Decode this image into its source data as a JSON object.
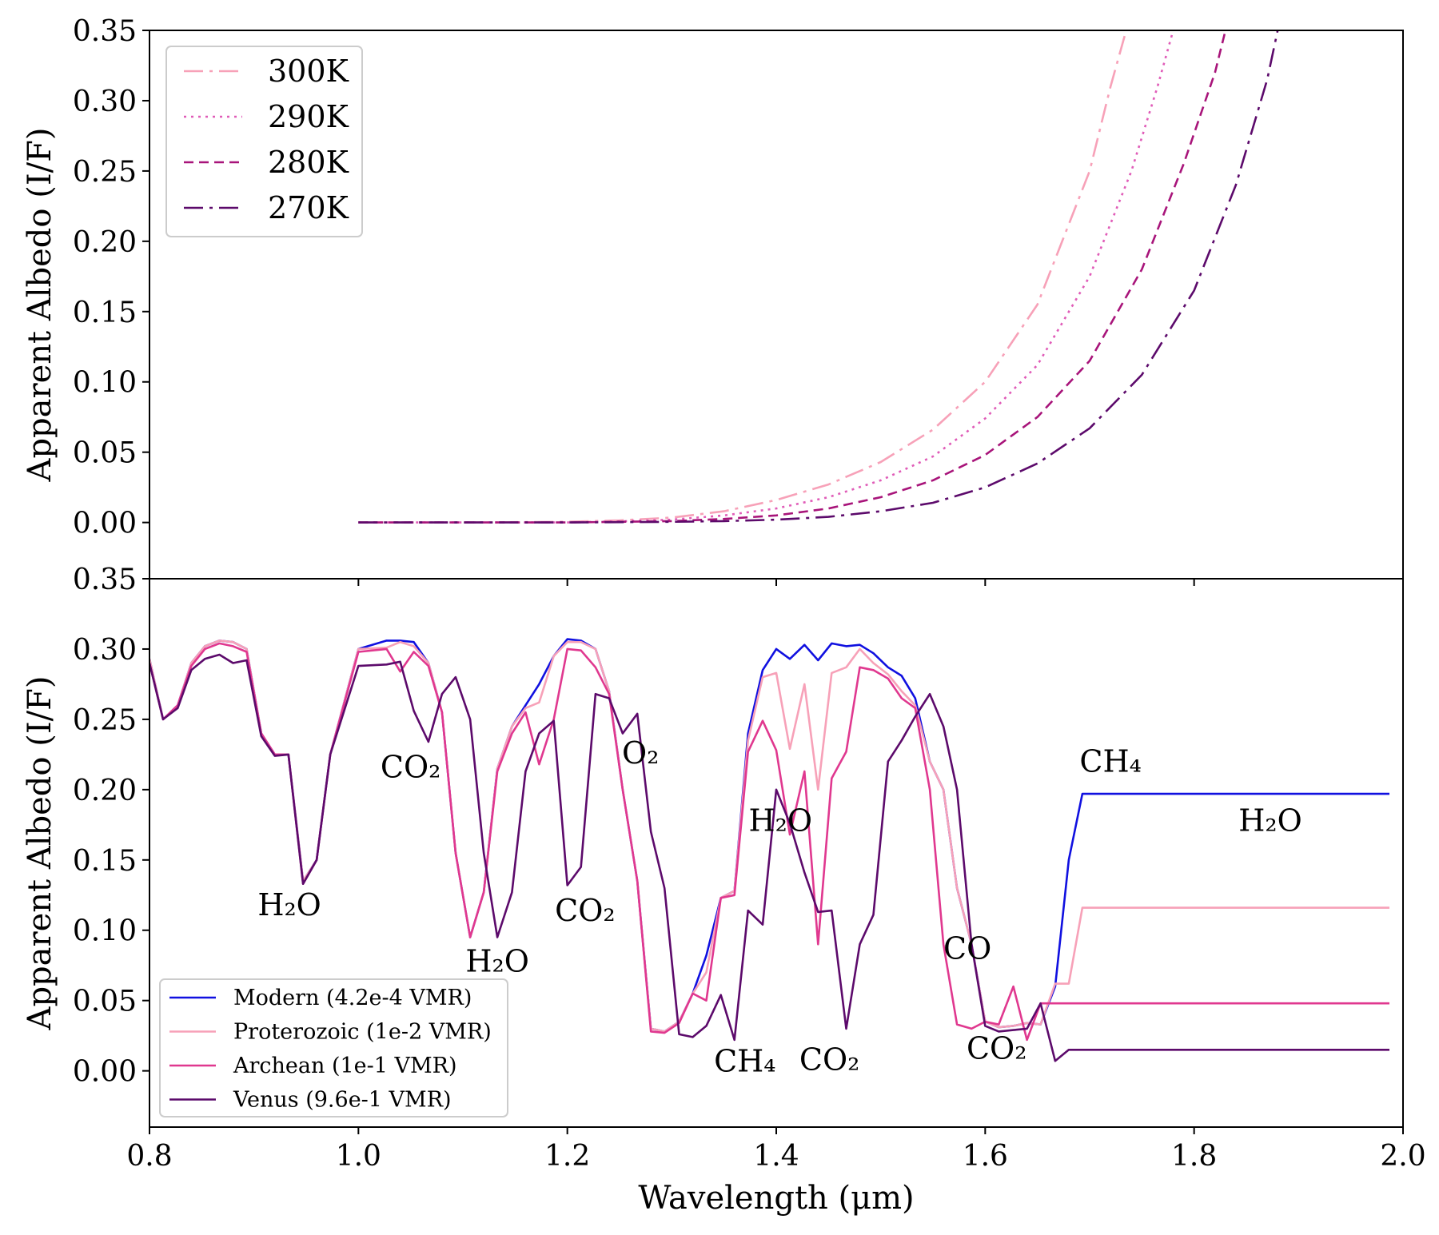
{
  "figure": {
    "xlabel": "Wavelength (μm)",
    "colors": {
      "axis": "#000000",
      "legend_border": "#cccccc"
    }
  },
  "chart_data": [
    {
      "type": "line",
      "panel": "top",
      "title": "",
      "xlabel": "Wavelength (μm)",
      "ylabel": "Apparent Albedo (I/F)",
      "xlim": [
        0.8,
        2.0
      ],
      "ylim": [
        -0.04,
        0.35
      ],
      "xticks": [
        0.8,
        1.0,
        1.2,
        1.4,
        1.6,
        1.8,
        2.0
      ],
      "yticks": [
        "0.00",
        "0.05",
        "0.10",
        "0.15",
        "0.20",
        "0.25",
        "0.30",
        "0.35"
      ],
      "grid": false,
      "legend_position": "top-left",
      "series": [
        {
          "name": "300K",
          "color": "#f7a1b8",
          "dash": "24,8,4,8",
          "x": [
            1.0,
            1.1,
            1.2,
            1.25,
            1.3,
            1.35,
            1.4,
            1.45,
            1.5,
            1.55,
            1.6,
            1.65,
            1.7,
            1.72,
            1.735
          ],
          "y": [
            0.0,
            0.0,
            0.0005,
            0.0015,
            0.0035,
            0.008,
            0.016,
            0.027,
            0.043,
            0.066,
            0.1,
            0.155,
            0.25,
            0.31,
            0.35
          ]
        },
        {
          "name": "290K",
          "color": "#e05cb8",
          "dash": "3,6",
          "x": [
            1.0,
            1.1,
            1.2,
            1.25,
            1.3,
            1.35,
            1.4,
            1.45,
            1.5,
            1.55,
            1.6,
            1.65,
            1.7,
            1.74,
            1.765,
            1.78
          ],
          "y": [
            0.0,
            0.0,
            0.0,
            0.0008,
            0.002,
            0.005,
            0.01,
            0.018,
            0.03,
            0.047,
            0.074,
            0.112,
            0.175,
            0.25,
            0.31,
            0.35
          ]
        },
        {
          "name": "280K",
          "color": "#a8147a",
          "dash": "12,7",
          "x": [
            1.0,
            1.1,
            1.2,
            1.3,
            1.35,
            1.4,
            1.45,
            1.5,
            1.55,
            1.6,
            1.65,
            1.7,
            1.75,
            1.79,
            1.82,
            1.83
          ],
          "y": [
            0.0,
            0.0,
            0.0,
            0.001,
            0.0025,
            0.005,
            0.01,
            0.018,
            0.03,
            0.048,
            0.075,
            0.115,
            0.18,
            0.255,
            0.32,
            0.35
          ]
        },
        {
          "name": "270K",
          "color": "#5c0a6b",
          "dash": "24,8,4,8",
          "x": [
            1.0,
            1.1,
            1.2,
            1.3,
            1.35,
            1.4,
            1.45,
            1.5,
            1.55,
            1.6,
            1.65,
            1.7,
            1.75,
            1.8,
            1.84,
            1.87,
            1.88
          ],
          "y": [
            0.0,
            0.0,
            0.0,
            0.0005,
            0.001,
            0.002,
            0.004,
            0.008,
            0.014,
            0.025,
            0.042,
            0.067,
            0.105,
            0.165,
            0.24,
            0.315,
            0.35
          ]
        }
      ]
    },
    {
      "type": "line",
      "panel": "bottom",
      "title": "",
      "xlabel": "Wavelength (μm)",
      "ylabel": "Apparent Albedo (I/F)",
      "xlim": [
        0.8,
        2.0
      ],
      "ylim": [
        -0.04,
        0.35
      ],
      "xticks": [
        "0.8",
        "1.0",
        "1.2",
        "1.4",
        "1.6",
        "1.8",
        "2.0"
      ],
      "yticks": [
        "0.00",
        "0.05",
        "0.10",
        "0.15",
        "0.20",
        "0.25",
        "0.30",
        "0.35"
      ],
      "grid": false,
      "legend_position": "bottom-left",
      "series": [
        {
          "name": "Modern (4.2e-4 VMR)",
          "color": "#1010e0",
          "x": [
            0.8,
            0.813,
            0.827,
            0.84,
            0.853,
            0.867,
            0.88,
            0.893,
            0.907,
            0.92,
            0.933,
            0.947,
            0.96,
            0.973,
            1.0,
            1.027,
            1.04,
            1.053,
            1.067,
            1.08,
            1.093,
            1.107,
            1.12,
            1.133,
            1.147,
            1.16,
            1.173,
            1.187,
            1.2,
            1.213,
            1.227,
            1.24,
            1.253,
            1.267,
            1.28,
            1.293,
            1.307,
            1.32,
            1.333,
            1.347,
            1.36,
            1.373,
            1.387,
            1.4,
            1.413,
            1.427,
            1.44,
            1.453,
            1.467,
            1.48,
            1.493,
            1.507,
            1.52,
            1.533,
            1.547,
            1.56,
            1.573,
            1.587,
            1.6,
            1.613,
            1.627,
            1.64,
            1.653,
            1.667,
            1.68,
            1.693,
            1.707,
            1.72,
            1.733,
            1.747,
            1.76,
            1.773,
            1.787,
            1.8,
            1.813,
            1.827,
            1.84,
            1.853,
            1.867,
            1.88,
            1.893,
            1.907,
            1.92,
            1.933,
            1.947,
            1.96,
            1.973,
            1.987
          ],
          "y": [
            0.293,
            0.25,
            0.26,
            0.29,
            0.302,
            0.306,
            0.305,
            0.3,
            0.24,
            0.225,
            0.225,
            0.135,
            0.15,
            0.225,
            0.3,
            0.306,
            0.306,
            0.305,
            0.29,
            0.255,
            0.155,
            0.095,
            0.127,
            0.215,
            0.245,
            0.26,
            0.275,
            0.295,
            0.307,
            0.306,
            0.3,
            0.27,
            0.2,
            0.135,
            0.03,
            0.028,
            0.035,
            0.055,
            0.082,
            0.123,
            0.128,
            0.24,
            0.285,
            0.3,
            0.293,
            0.303,
            0.292,
            0.304,
            0.302,
            0.303,
            0.297,
            0.287,
            0.281,
            0.265,
            0.22,
            0.2,
            0.13,
            0.09,
            0.035,
            0.031,
            0.032,
            0.034,
            0.033,
            0.06,
            0.15,
            0.197,
            0.197,
            0.197,
            0.197,
            0.197,
            0.197,
            0.197,
            0.197,
            0.197,
            0.197,
            0.197,
            0.197,
            0.197,
            0.197,
            0.197,
            0.197,
            0.197,
            0.197,
            0.197,
            0.197,
            0.197,
            0.197,
            0.197
          ]
        },
        {
          "name": "Proterozoic (1e-2 VMR)",
          "color": "#f7a1b8",
          "x": [
            0.8,
            0.813,
            0.827,
            0.84,
            0.853,
            0.867,
            0.88,
            0.893,
            0.907,
            0.92,
            0.933,
            0.947,
            0.96,
            0.973,
            1.0,
            1.027,
            1.04,
            1.053,
            1.067,
            1.08,
            1.093,
            1.107,
            1.12,
            1.133,
            1.147,
            1.16,
            1.173,
            1.187,
            1.2,
            1.213,
            1.227,
            1.24,
            1.253,
            1.267,
            1.28,
            1.293,
            1.307,
            1.32,
            1.333,
            1.347,
            1.36,
            1.373,
            1.387,
            1.4,
            1.413,
            1.427,
            1.44,
            1.453,
            1.467,
            1.48,
            1.493,
            1.507,
            1.52,
            1.533,
            1.547,
            1.56,
            1.573,
            1.587,
            1.6,
            1.613,
            1.627,
            1.64,
            1.653,
            1.667,
            1.68,
            1.693,
            1.707,
            1.72,
            1.733,
            1.747,
            1.76,
            1.773,
            1.787,
            1.8,
            1.813,
            1.827,
            1.84,
            1.853,
            1.867,
            1.88,
            1.893,
            1.907,
            1.92,
            1.933,
            1.947,
            1.96,
            1.973,
            1.987
          ],
          "y": [
            0.293,
            0.25,
            0.26,
            0.29,
            0.302,
            0.306,
            0.305,
            0.3,
            0.24,
            0.225,
            0.225,
            0.135,
            0.15,
            0.225,
            0.3,
            0.301,
            0.305,
            0.302,
            0.29,
            0.255,
            0.155,
            0.095,
            0.127,
            0.215,
            0.245,
            0.258,
            0.262,
            0.295,
            0.305,
            0.305,
            0.3,
            0.27,
            0.2,
            0.135,
            0.03,
            0.028,
            0.035,
            0.055,
            0.07,
            0.123,
            0.128,
            0.235,
            0.28,
            0.283,
            0.229,
            0.275,
            0.2,
            0.283,
            0.287,
            0.3,
            0.29,
            0.282,
            0.27,
            0.26,
            0.22,
            0.2,
            0.13,
            0.09,
            0.035,
            0.031,
            0.032,
            0.034,
            0.033,
            0.062,
            0.062,
            0.116,
            0.116,
            0.116,
            0.116,
            0.116,
            0.116,
            0.116,
            0.116,
            0.116,
            0.116,
            0.116,
            0.116,
            0.116,
            0.116,
            0.116,
            0.116,
            0.116,
            0.116,
            0.116,
            0.116,
            0.116,
            0.116,
            0.116
          ]
        },
        {
          "name": "Archean (1e-1 VMR)",
          "color": "#e0388f",
          "x": [
            0.8,
            0.813,
            0.827,
            0.84,
            0.853,
            0.867,
            0.88,
            0.893,
            0.907,
            0.92,
            0.933,
            0.947,
            0.96,
            0.973,
            1.0,
            1.027,
            1.04,
            1.053,
            1.067,
            1.08,
            1.093,
            1.107,
            1.12,
            1.133,
            1.147,
            1.16,
            1.173,
            1.187,
            1.2,
            1.213,
            1.227,
            1.24,
            1.253,
            1.267,
            1.28,
            1.293,
            1.307,
            1.32,
            1.333,
            1.347,
            1.36,
            1.373,
            1.387,
            1.4,
            1.413,
            1.427,
            1.44,
            1.453,
            1.467,
            1.48,
            1.493,
            1.507,
            1.52,
            1.533,
            1.547,
            1.56,
            1.573,
            1.587,
            1.6,
            1.613,
            1.627,
            1.64,
            1.653,
            1.667,
            1.68,
            1.693,
            1.707,
            1.72,
            1.733,
            1.747,
            1.76,
            1.773,
            1.787,
            1.8,
            1.813,
            1.827,
            1.84,
            1.853,
            1.867,
            1.88,
            1.893,
            1.907,
            1.92,
            1.933,
            1.947,
            1.96,
            1.973,
            1.987
          ],
          "y": [
            0.29,
            0.25,
            0.26,
            0.288,
            0.3,
            0.304,
            0.302,
            0.298,
            0.24,
            0.225,
            0.225,
            0.133,
            0.15,
            0.225,
            0.298,
            0.3,
            0.284,
            0.298,
            0.288,
            0.255,
            0.155,
            0.095,
            0.127,
            0.213,
            0.24,
            0.255,
            0.218,
            0.25,
            0.3,
            0.299,
            0.287,
            0.268,
            0.2,
            0.135,
            0.028,
            0.027,
            0.034,
            0.055,
            0.05,
            0.123,
            0.125,
            0.227,
            0.249,
            0.228,
            0.168,
            0.213,
            0.09,
            0.208,
            0.227,
            0.287,
            0.285,
            0.279,
            0.265,
            0.258,
            0.2,
            0.09,
            0.033,
            0.03,
            0.035,
            0.033,
            0.06,
            0.022,
            0.048,
            0.048,
            0.048,
            0.048,
            0.048,
            0.048,
            0.048,
            0.048,
            0.048,
            0.048,
            0.048,
            0.048,
            0.048,
            0.048,
            0.048,
            0.048,
            0.048,
            0.048,
            0.048,
            0.048,
            0.048,
            0.048,
            0.048,
            0.048,
            0.048,
            0.048
          ]
        },
        {
          "name": "Venus (9.6e-1 VMR)",
          "color": "#5c0a6b",
          "x": [
            0.8,
            0.813,
            0.827,
            0.84,
            0.853,
            0.867,
            0.88,
            0.893,
            0.907,
            0.92,
            0.933,
            0.947,
            0.96,
            0.973,
            1.0,
            1.027,
            1.04,
            1.053,
            1.067,
            1.08,
            1.093,
            1.107,
            1.12,
            1.133,
            1.147,
            1.16,
            1.173,
            1.187,
            1.2,
            1.213,
            1.227,
            1.24,
            1.253,
            1.267,
            1.28,
            1.293,
            1.307,
            1.32,
            1.333,
            1.347,
            1.36,
            1.373,
            1.387,
            1.4,
            1.413,
            1.427,
            1.44,
            1.453,
            1.467,
            1.48,
            1.493,
            1.507,
            1.52,
            1.533,
            1.547,
            1.56,
            1.573,
            1.587,
            1.6,
            1.613,
            1.627,
            1.64,
            1.653,
            1.667,
            1.68,
            1.693,
            1.707,
            1.72,
            1.733,
            1.747,
            1.76,
            1.773,
            1.787,
            1.8,
            1.813,
            1.827,
            1.84,
            1.853,
            1.867,
            1.88,
            1.893,
            1.907,
            1.92,
            1.933,
            1.947,
            1.96,
            1.973,
            1.987
          ],
          "y": [
            0.29,
            0.25,
            0.258,
            0.285,
            0.293,
            0.296,
            0.29,
            0.292,
            0.238,
            0.224,
            0.225,
            0.133,
            0.15,
            0.225,
            0.288,
            0.289,
            0.291,
            0.256,
            0.234,
            0.268,
            0.28,
            0.25,
            0.155,
            0.095,
            0.127,
            0.213,
            0.24,
            0.249,
            0.132,
            0.145,
            0.268,
            0.265,
            0.24,
            0.254,
            0.17,
            0.13,
            0.026,
            0.024,
            0.032,
            0.054,
            0.022,
            0.114,
            0.104,
            0.2,
            0.176,
            0.141,
            0.113,
            0.114,
            0.03,
            0.09,
            0.111,
            0.22,
            0.235,
            0.252,
            0.268,
            0.245,
            0.2,
            0.09,
            0.032,
            0.028,
            0.029,
            0.03,
            0.048,
            0.007,
            0.015,
            0.015,
            0.015,
            0.015,
            0.015,
            0.015,
            0.015,
            0.015,
            0.015,
            0.015,
            0.015,
            0.015,
            0.015,
            0.015,
            0.015,
            0.015,
            0.015,
            0.015,
            0.015,
            0.015,
            0.015,
            0.015,
            0.015,
            0.015
          ]
        }
      ],
      "annotations": [
        {
          "text": "H₂O",
          "x": 0.934,
          "y": 0.118
        },
        {
          "text": "CO₂",
          "x": 1.05,
          "y": 0.216
        },
        {
          "text": "H₂O",
          "x": 1.133,
          "y": 0.078
        },
        {
          "text": "CO₂",
          "x": 1.217,
          "y": 0.114
        },
        {
          "text": "O₂",
          "x": 1.27,
          "y": 0.226
        },
        {
          "text": "H₂O",
          "x": 1.404,
          "y": 0.178
        },
        {
          "text": "CH₄",
          "x": 1.37,
          "y": 0.007
        },
        {
          "text": "CO₂",
          "x": 1.451,
          "y": 0.008
        },
        {
          "text": "CO",
          "x": 1.583,
          "y": 0.087
        },
        {
          "text": "CO₂",
          "x": 1.611,
          "y": 0.016
        },
        {
          "text": "CH₄",
          "x": 1.72,
          "y": 0.22
        },
        {
          "text": "H₂O",
          "x": 1.873,
          "y": 0.178
        }
      ]
    }
  ]
}
